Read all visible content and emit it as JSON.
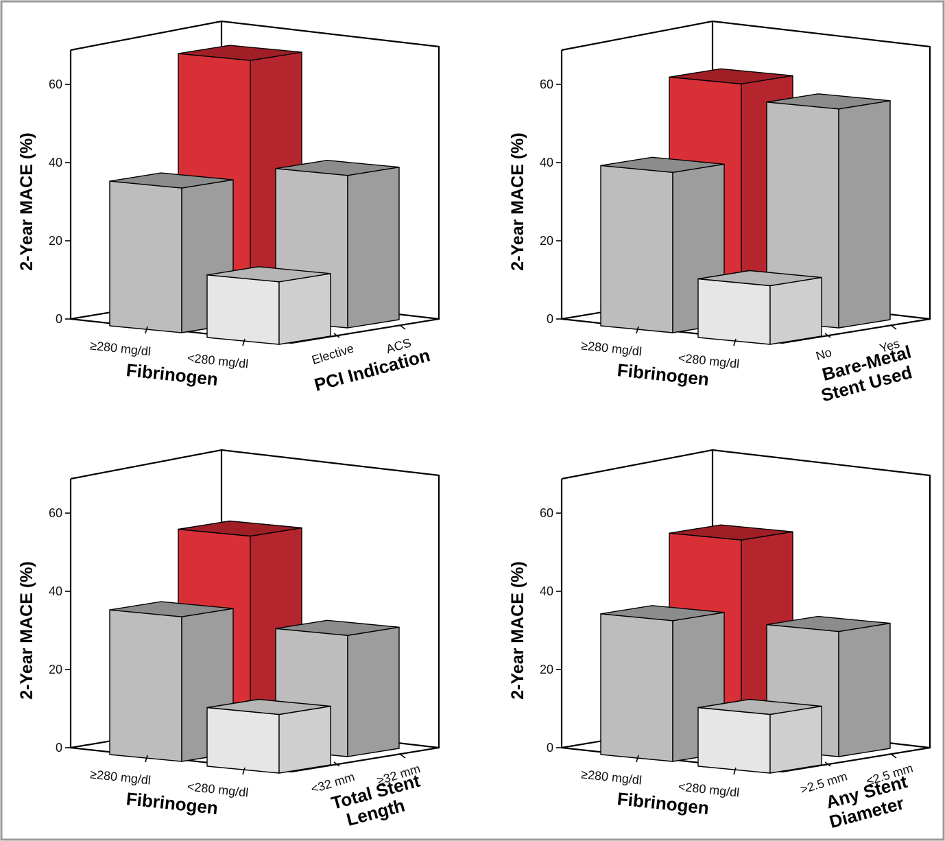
{
  "colors": {
    "high_high": {
      "front": "#d93038",
      "side": "#b5252d",
      "top": "#a01f27"
    },
    "high_low": {
      "front": "#bdbdbd",
      "side": "#9d9d9d",
      "top": "#8c8c8c"
    },
    "low_high": {
      "front": "#bdbdbd",
      "side": "#9d9d9d",
      "top": "#8c8c8c"
    },
    "low_low": {
      "front": "#e6e6e6",
      "side": "#cfcfcf",
      "top": "#b6b6b6"
    },
    "frame": "#000000",
    "border": "#9a9a9a"
  },
  "chart_data": [
    {
      "type": "bar",
      "ylabel": "2-Year MACE (%)",
      "yticks": [
        "0",
        "20",
        "40",
        "60"
      ],
      "ylim": [
        0,
        60
      ],
      "xlabel": "Fibrinogen",
      "x_categories": [
        "≥280 mg/dl",
        "<280 mg/dl"
      ],
      "zlabel_lines": [
        "PCI Indication"
      ],
      "z_categories": [
        "Elective",
        "ACS"
      ],
      "bars": [
        {
          "x": "≥280 mg/dl",
          "z": "ACS",
          "value": 67
        },
        {
          "x": "≥280 mg/dl",
          "z": "Elective",
          "value": 37
        },
        {
          "x": "<280 mg/dl",
          "z": "ACS",
          "value": 39
        },
        {
          "x": "<280 mg/dl",
          "z": "Elective",
          "value": 16
        }
      ]
    },
    {
      "type": "bar",
      "ylabel": "2-Year MACE (%)",
      "yticks": [
        "0",
        "20",
        "40",
        "60"
      ],
      "ylim": [
        0,
        60
      ],
      "xlabel": "Fibrinogen",
      "x_categories": [
        "≥280 mg/dl",
        "<280 mg/dl"
      ],
      "zlabel_lines": [
        "Bare-Metal",
        "Stent Used"
      ],
      "z_categories": [
        "No",
        "Yes"
      ],
      "bars": [
        {
          "x": "≥280 mg/dl",
          "z": "Yes",
          "value": 61
        },
        {
          "x": "≥280 mg/dl",
          "z": "No",
          "value": 41
        },
        {
          "x": "<280 mg/dl",
          "z": "Yes",
          "value": 56
        },
        {
          "x": "<280 mg/dl",
          "z": "No",
          "value": 15
        }
      ]
    },
    {
      "type": "bar",
      "ylabel": "2-Year MACE (%)",
      "yticks": [
        "0",
        "20",
        "40",
        "60"
      ],
      "ylim": [
        0,
        60
      ],
      "xlabel": "Fibrinogen",
      "x_categories": [
        "≥280 mg/dl",
        "<280 mg/dl"
      ],
      "zlabel_lines": [
        "Total Stent",
        "Length"
      ],
      "z_categories": [
        "<32 mm",
        "≥32 mm"
      ],
      "bars": [
        {
          "x": "≥280 mg/dl",
          "z": "≥32 mm",
          "value": 55
        },
        {
          "x": "≥280 mg/dl",
          "z": "<32 mm",
          "value": 37
        },
        {
          "x": "<280 mg/dl",
          "z": "≥32 mm",
          "value": 31
        },
        {
          "x": "<280 mg/dl",
          "z": "<32 mm",
          "value": 15
        }
      ]
    },
    {
      "type": "bar",
      "ylabel": "2-Year MACE (%)",
      "yticks": [
        "0",
        "20",
        "40",
        "60"
      ],
      "ylim": [
        0,
        60
      ],
      "xlabel": "Fibrinogen",
      "x_categories": [
        "≥280 mg/dl",
        "<280 mg/dl"
      ],
      "zlabel_lines": [
        "Any Stent",
        "Diameter"
      ],
      "z_categories": [
        ">2.5 mm",
        "≤2.5 mm"
      ],
      "bars": [
        {
          "x": "≥280 mg/dl",
          "z": "≤2.5 mm",
          "value": 54
        },
        {
          "x": "≥280 mg/dl",
          "z": "≤2.5 mm",
          "value": 36
        },
        {
          "x": "<280 mg/dl",
          "z": "≤2.5 mm",
          "value": 32
        },
        {
          "x": "<280 mg/dl",
          "z": ">2.5 mm",
          "value": 15
        }
      ]
    }
  ]
}
